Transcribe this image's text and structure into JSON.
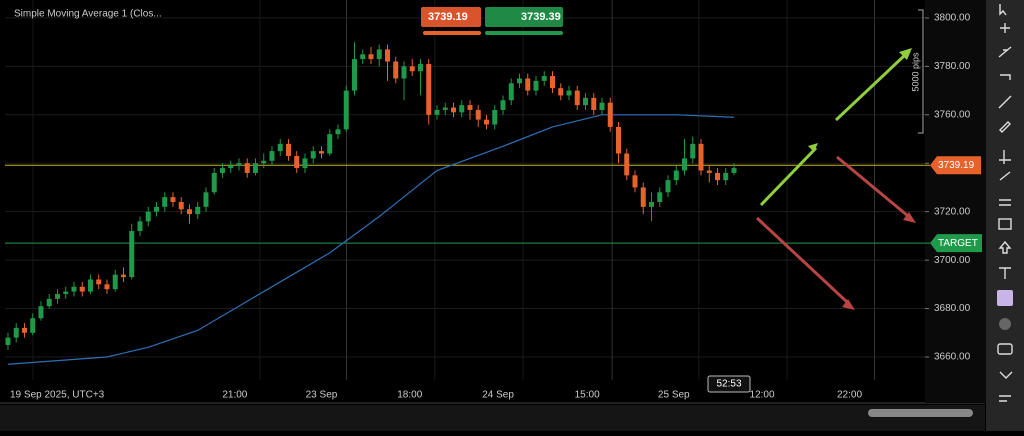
{
  "chart_data": {
    "type": "candlestick",
    "title": "Simple Moving Average 1 (Clos...",
    "up_color": "#1f9a4b",
    "down_color": "#e8622c",
    "xlim": [
      -0.36,
      111.15
    ],
    "ylim": [
      3650.5,
      3807.4
    ],
    "yticks": [
      {
        "value": 3800,
        "label": "3800.00"
      },
      {
        "value": 3780,
        "label": "3780.00"
      },
      {
        "value": 3760,
        "label": "3760.00"
      },
      {
        "value": 3740,
        "label": "3740.00"
      },
      {
        "value": 3720,
        "label": "3720.00"
      },
      {
        "value": 3700,
        "label": "3700.00"
      },
      {
        "value": 3680,
        "label": "3680.00"
      },
      {
        "value": 3660,
        "label": "3660.00"
      }
    ],
    "xticks": [
      {
        "value": 0,
        "label": "19 Sep 2025, UTC+3"
      },
      {
        "value": 27.5,
        "label": "21:00"
      },
      {
        "value": 38,
        "label": "23 Sep"
      },
      {
        "value": 48.7,
        "label": "18:00"
      },
      {
        "value": 59.4,
        "label": "24 Sep"
      },
      {
        "value": 70.2,
        "label": "15:00"
      },
      {
        "value": 80.7,
        "label": "25 Sep"
      },
      {
        "value": 91.4,
        "label": "12:00"
      },
      {
        "value": 102,
        "label": "22:00"
      }
    ],
    "open": [
      3665,
      3668,
      3672,
      3670,
      3676,
      3681,
      3684,
      3686,
      3687,
      3689,
      3687,
      3692,
      3690,
      3688,
      3694,
      3693,
      3712,
      3716,
      3720,
      3722,
      3726,
      3724,
      3721,
      3719,
      3722,
      3728,
      3736,
      3738,
      3739,
      3740,
      3736,
      3740,
      3741,
      3745,
      3748,
      3743,
      3738,
      3742,
      3745,
      3744,
      3752,
      3754,
      3770,
      3783,
      3785,
      3783,
      3787,
      3782,
      3775,
      3780,
      3778,
      3781,
      3760,
      3762,
      3763,
      3761,
      3764,
      3762,
      3758,
      3756,
      3762,
      3766,
      3773,
      3775,
      3770,
      3774,
      3776,
      3771,
      3768,
      3770,
      3764,
      3767,
      3762,
      3765,
      3755,
      3744,
      3735,
      3730,
      3722,
      3724,
      3728,
      3733,
      3737,
      3742,
      3748,
      3737,
      3736,
      3733,
      3736
    ],
    "high": [
      3670,
      3674,
      3674,
      3678,
      3683,
      3686,
      3688,
      3689,
      3691,
      3691,
      3694,
      3694,
      3692,
      3696,
      3697,
      3715,
      3718,
      3722,
      3724,
      3728,
      3728,
      3726,
      3723,
      3724,
      3730,
      3738,
      3740,
      3741,
      3742,
      3742,
      3742,
      3744,
      3747,
      3750,
      3750,
      3745,
      3744,
      3747,
      3747,
      3754,
      3756,
      3772,
      3790,
      3787,
      3788,
      3789,
      3789,
      3784,
      3782,
      3783,
      3783,
      3783,
      3764,
      3765,
      3765,
      3766,
      3766,
      3764,
      3760,
      3764,
      3768,
      3775,
      3777,
      3777,
      3776,
      3778,
      3778,
      3773,
      3772,
      3772,
      3769,
      3769,
      3767,
      3767,
      3757,
      3746,
      3737,
      3732,
      3728,
      3730,
      3735,
      3739,
      3750,
      3751,
      3750,
      3739,
      3738,
      3738,
      3740
    ],
    "low": [
      3663,
      3666,
      3668,
      3669,
      3675,
      3680,
      3682,
      3684,
      3685,
      3685,
      3686,
      3688,
      3686,
      3687,
      3691,
      3692,
      3710,
      3714,
      3718,
      3720,
      3722,
      3719,
      3715,
      3717,
      3720,
      3727,
      3734,
      3736,
      3737,
      3734,
      3735,
      3738,
      3739,
      3743,
      3741,
      3736,
      3736,
      3740,
      3742,
      3743,
      3750,
      3753,
      3768,
      3781,
      3781,
      3780,
      3774,
      3773,
      3766,
      3776,
      3768,
      3756,
      3758,
      3760,
      3759,
      3759,
      3758,
      3755,
      3754,
      3754,
      3760,
      3764,
      3771,
      3768,
      3768,
      3772,
      3769,
      3766,
      3766,
      3762,
      3762,
      3760,
      3760,
      3753,
      3740,
      3733,
      3728,
      3719,
      3716,
      3722,
      3726,
      3731,
      3735,
      3740,
      3735,
      3732,
      3731,
      3731,
      3735
    ],
    "close": [
      3668,
      3672,
      3670,
      3676,
      3681,
      3684,
      3686,
      3687,
      3689,
      3687,
      3692,
      3690,
      3688,
      3694,
      3693,
      3712,
      3716,
      3720,
      3722,
      3726,
      3724,
      3721,
      3719,
      3722,
      3728,
      3736,
      3738,
      3739,
      3740,
      3736,
      3740,
      3741,
      3745,
      3748,
      3743,
      3738,
      3742,
      3745,
      3744,
      3752,
      3754,
      3770,
      3783,
      3785,
      3783,
      3787,
      3782,
      3775,
      3780,
      3778,
      3781,
      3760,
      3762,
      3763,
      3761,
      3764,
      3762,
      3758,
      3756,
      3762,
      3766,
      3773,
      3775,
      3770,
      3774,
      3776,
      3771,
      3768,
      3770,
      3764,
      3767,
      3762,
      3765,
      3755,
      3744,
      3735,
      3730,
      3722,
      3724,
      3728,
      3733,
      3737,
      3742,
      3748,
      3737,
      3736,
      3733,
      3736,
      3738
    ],
    "sma": {
      "color": "#2f6fb5",
      "x": [
        0,
        12,
        17,
        23,
        30,
        39,
        45,
        52,
        60,
        66,
        72,
        75,
        81,
        88
      ],
      "values": [
        3657,
        3660,
        3664,
        3671,
        3685,
        3703,
        3718,
        3737,
        3747,
        3755,
        3760,
        3760,
        3760,
        3759
      ]
    },
    "price_line": {
      "value": 3739.19,
      "color": "#c8b02a",
      "tag_color": "#e8622c"
    },
    "target_line": {
      "value": 3707,
      "label": "TARGET",
      "color": "#1f9a4b"
    },
    "sell": 3739.19,
    "buy": 3739.39,
    "pips": "5000 pips",
    "timer": "52:53"
  }
}
